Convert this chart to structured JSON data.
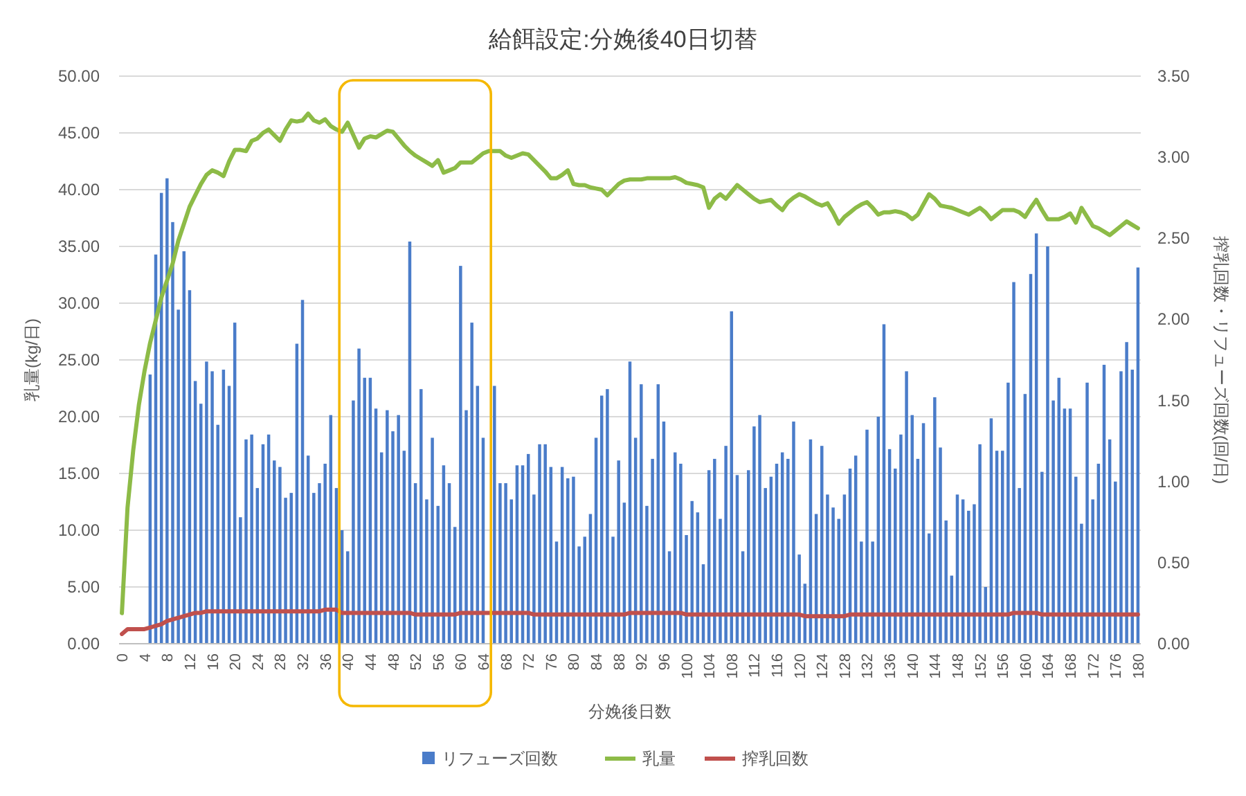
{
  "chart_data": {
    "type": "bar",
    "title": "給餌設定:分娩後40日切替",
    "xlabel": "分娩後日数",
    "ylabel": "乳量(kg/日)",
    "y2label": "搾乳回数・リフューズ回数(回/日)",
    "categories": [
      "0",
      null,
      null,
      null,
      "4",
      null,
      null,
      null,
      "8",
      null,
      null,
      null,
      "12",
      null,
      null,
      null,
      "16",
      null,
      null,
      null,
      "20",
      null,
      null,
      null,
      "24",
      null,
      null,
      null,
      "28",
      null,
      null,
      null,
      "32",
      null,
      null,
      null,
      "36",
      null,
      null,
      null,
      "40",
      null,
      null,
      null,
      "44",
      null,
      null,
      null,
      "48",
      null,
      null,
      null,
      "52",
      null,
      null,
      null,
      "56",
      null,
      null,
      null,
      "60",
      null,
      null,
      null,
      "64",
      null,
      null,
      null,
      "68",
      null,
      null,
      null,
      "72",
      null,
      null,
      null,
      "76",
      null,
      null,
      null,
      "80",
      null,
      null,
      null,
      "84",
      null,
      null,
      null,
      "88",
      null,
      null,
      null,
      "92",
      null,
      null,
      null,
      "96",
      null,
      null,
      null,
      "100",
      null,
      null,
      null,
      "104",
      null,
      null,
      null,
      "108",
      null,
      null,
      null,
      "112",
      null,
      null,
      null,
      "116",
      null,
      null,
      null,
      "120",
      null,
      null,
      null,
      "124",
      null,
      null,
      null,
      "128",
      null,
      null,
      null,
      "132",
      null,
      null,
      null,
      "136",
      null,
      null,
      null,
      "140",
      null,
      null,
      null,
      "144",
      null,
      null,
      null,
      "148",
      null,
      null,
      null,
      "152",
      null,
      null,
      null,
      "156",
      null,
      null,
      null,
      "160",
      null,
      null,
      null,
      "164",
      null,
      null,
      null,
      "168",
      null,
      null,
      null,
      "172",
      null,
      null,
      null,
      "176",
      null,
      null,
      null,
      "180"
    ],
    "series": [
      {
        "name": "リフューズ回数",
        "axis": "y2",
        "color": "#4a7cc9",
        "values": [
          0,
          0,
          0,
          0,
          0,
          1.66,
          2.4,
          2.78,
          2.87,
          2.6,
          2.06,
          2.42,
          2.18,
          1.62,
          1.48,
          1.74,
          1.68,
          1.35,
          1.69,
          1.59,
          1.98,
          0.78,
          1.26,
          1.29,
          0.96,
          1.23,
          1.29,
          1.13,
          1.09,
          0.9,
          0.93,
          1.85,
          2.12,
          1.16,
          0.93,
          0.99,
          1.11,
          1.41,
          0.96,
          0.7,
          0.57,
          1.5,
          1.82,
          1.64,
          1.64,
          1.45,
          1.18,
          1.44,
          1.31,
          1.41,
          1.19,
          2.48,
          0.99,
          1.57,
          0.89,
          1.27,
          0.85,
          1.1,
          0.99,
          0.72,
          2.33,
          1.44,
          1.98,
          1.59,
          1.27,
          null,
          1.59,
          0.99,
          0.99,
          0.89,
          1.1,
          1.1,
          1.17,
          0.92,
          1.23,
          1.23,
          1.09,
          0.63,
          1.09,
          1.02,
          1.03,
          0.6,
          0.66,
          0.8,
          1.27,
          1.53,
          1.57,
          0.66,
          1.13,
          0.87,
          1.74,
          1.27,
          1.6,
          0.85,
          1.14,
          1.6,
          1.37,
          0.57,
          1.18,
          1.11,
          0.67,
          0.88,
          0.81,
          0.49,
          1.07,
          1.14,
          0.77,
          1.22,
          2.05,
          1.04,
          0.57,
          1.07,
          1.34,
          1.41,
          0.96,
          1.03,
          1.11,
          1.18,
          1.14,
          1.37,
          0.55,
          0.37,
          1.26,
          0.8,
          1.22,
          0.92,
          0.84,
          0.77,
          0.92,
          1.08,
          1.16,
          0.63,
          1.32,
          0.63,
          1.4,
          1.97,
          1.2,
          1.08,
          1.29,
          1.68,
          1.41,
          1.14,
          1.36,
          0.68,
          1.52,
          1.21,
          0.76,
          0.42,
          0.92,
          0.89,
          0.82,
          0.86,
          1.23,
          0.35,
          1.39,
          1.19,
          1.19,
          1.61,
          2.23,
          0.96,
          1.54,
          2.28,
          2.53,
          1.06,
          2.45,
          1.5,
          1.64,
          1.45,
          1.45,
          1.03,
          0.74,
          1.61,
          0.89,
          1.11,
          1.72,
          1.26,
          1.0,
          1.68,
          1.86,
          1.69,
          2.32
        ]
      },
      {
        "name": "乳量",
        "type": "line",
        "axis": "y",
        "color": "#8dbb47",
        "values": [
          2.7,
          12,
          17,
          21,
          24,
          26.5,
          28.5,
          30.5,
          32,
          33.5,
          35.5,
          37,
          38.5,
          39.5,
          40.5,
          41.3,
          41.7,
          41.5,
          41.2,
          42.5,
          43.5,
          43.5,
          43.4,
          44.3,
          44.5,
          45,
          45.3,
          44.8,
          44.3,
          45.3,
          46.1,
          46,
          46.1,
          46.7,
          46.1,
          45.9,
          46.2,
          45.6,
          45.3,
          45.1,
          45.9,
          44.8,
          43.7,
          44.5,
          44.7,
          44.6,
          44.9,
          45.2,
          45.1,
          44.5,
          43.9,
          43.4,
          43.0,
          42.7,
          42.4,
          42.1,
          42.6,
          41.5,
          41.7,
          41.9,
          42.4,
          42.4,
          42.4,
          42.8,
          43.2,
          43.4,
          43.4,
          43.4,
          43.0,
          42.8,
          43.0,
          43.2,
          43.1,
          42.6,
          42.1,
          41.6,
          41.0,
          41.0,
          41.3,
          41.7,
          40.5,
          40.4,
          40.4,
          40.2,
          40.1,
          40.0,
          39.5,
          40.0,
          40.5,
          40.8,
          40.9,
          40.9,
          40.9,
          41.0,
          41.0,
          41.0,
          41.0,
          41.0,
          41.1,
          40.9,
          40.6,
          40.5,
          40.4,
          40.2,
          38.4,
          39.2,
          39.6,
          39.2,
          39.8,
          40.4,
          40.0,
          39.6,
          39.2,
          38.9,
          39.0,
          39.1,
          38.6,
          38.2,
          38.9,
          39.3,
          39.6,
          39.4,
          39.1,
          38.8,
          38.6,
          38.8,
          38.0,
          37.0,
          37.6,
          38.0,
          38.4,
          38.7,
          38.9,
          38.4,
          37.8,
          38.0,
          38.0,
          38.1,
          38.0,
          37.8,
          37.4,
          37.8,
          38.7,
          39.6,
          39.2,
          38.6,
          38.5,
          38.4,
          38.2,
          38.0,
          37.8,
          38.1,
          38.4,
          38.0,
          37.4,
          37.8,
          38.2,
          38.2,
          38.2,
          38.0,
          37.6,
          38.4,
          39.1,
          38.2,
          37.4,
          37.4,
          37.4,
          37.6,
          37.9,
          37.1,
          38.4,
          37.6,
          36.8,
          36.6,
          36.3,
          36.0,
          36.4,
          36.8,
          37.2,
          36.9,
          36.6
        ]
      },
      {
        "name": "搾乳回数",
        "type": "line",
        "axis": "y2",
        "color": "#c0504d",
        "values": [
          0.06,
          0.09,
          0.09,
          0.09,
          0.09,
          0.1,
          0.11,
          0.12,
          0.14,
          0.15,
          0.16,
          0.17,
          0.18,
          0.19,
          0.19,
          0.2,
          0.2,
          0.2,
          0.2,
          0.2,
          0.2,
          0.2,
          0.2,
          0.2,
          0.2,
          0.2,
          0.2,
          0.2,
          0.2,
          0.2,
          0.2,
          0.2,
          0.2,
          0.2,
          0.2,
          0.2,
          0.21,
          0.21,
          0.21,
          0.19,
          0.19,
          0.19,
          0.19,
          0.19,
          0.19,
          0.19,
          0.19,
          0.19,
          0.19,
          0.19,
          0.19,
          0.19,
          0.18,
          0.18,
          0.18,
          0.18,
          0.18,
          0.18,
          0.18,
          0.18,
          0.19,
          0.19,
          0.19,
          0.19,
          0.19,
          0.19,
          0.19,
          0.19,
          0.19,
          0.19,
          0.19,
          0.19,
          0.19,
          0.18,
          0.18,
          0.18,
          0.18,
          0.18,
          0.18,
          0.18,
          0.18,
          0.18,
          0.18,
          0.18,
          0.18,
          0.18,
          0.18,
          0.18,
          0.18,
          0.18,
          0.19,
          0.19,
          0.19,
          0.19,
          0.19,
          0.19,
          0.19,
          0.19,
          0.19,
          0.19,
          0.18,
          0.18,
          0.18,
          0.18,
          0.18,
          0.18,
          0.18,
          0.18,
          0.18,
          0.18,
          0.18,
          0.18,
          0.18,
          0.18,
          0.18,
          0.18,
          0.18,
          0.18,
          0.18,
          0.18,
          0.18,
          0.17,
          0.17,
          0.17,
          0.17,
          0.17,
          0.17,
          0.17,
          0.17,
          0.18,
          0.18,
          0.18,
          0.18,
          0.18,
          0.18,
          0.18,
          0.18,
          0.18,
          0.18,
          0.18,
          0.18,
          0.18,
          0.18,
          0.18,
          0.18,
          0.18,
          0.18,
          0.18,
          0.18,
          0.18,
          0.18,
          0.18,
          0.18,
          0.18,
          0.18,
          0.18,
          0.18,
          0.18,
          0.19,
          0.19,
          0.19,
          0.19,
          0.19,
          0.18,
          0.18,
          0.18,
          0.18,
          0.18,
          0.18,
          0.18,
          0.18,
          0.18,
          0.18,
          0.18,
          0.18,
          0.18,
          0.18,
          0.18,
          0.18,
          0.18,
          0.18
        ]
      }
    ],
    "ylim": [
      0,
      50
    ],
    "yticks": [
      {
        "value": 0,
        "label": "0.00"
      },
      {
        "value": 5,
        "label": "5.00"
      },
      {
        "value": 10,
        "label": "10.00"
      },
      {
        "value": 15,
        "label": "15.00"
      },
      {
        "value": 20,
        "label": "20.00"
      },
      {
        "value": 25,
        "label": "25.00"
      },
      {
        "value": 30,
        "label": "30.00"
      },
      {
        "value": 35,
        "label": "35.00"
      },
      {
        "value": 40,
        "label": "40.00"
      },
      {
        "value": 45,
        "label": "45.00"
      },
      {
        "value": 50,
        "label": "50.00"
      }
    ],
    "y2lim": [
      0,
      3.5
    ],
    "y2ticks": [
      {
        "value": 0,
        "label": "0.00"
      },
      {
        "value": 0.5,
        "label": "0.50"
      },
      {
        "value": 1,
        "label": "1.00"
      },
      {
        "value": 1.5,
        "label": "1.50"
      },
      {
        "value": 2,
        "label": "2.00"
      },
      {
        "value": 2.5,
        "label": "2.50"
      },
      {
        "value": 3,
        "label": "3.00"
      },
      {
        "value": 3.5,
        "label": "3.50"
      }
    ],
    "grid": "y",
    "legend": "bottom"
  }
}
